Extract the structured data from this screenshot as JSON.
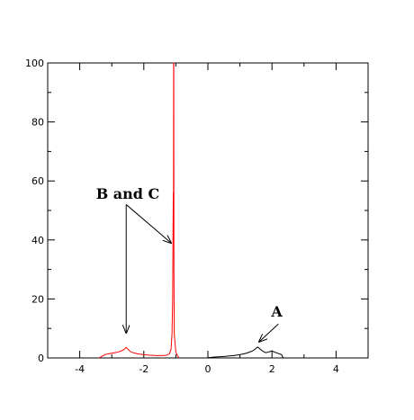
{
  "chart_data": {
    "type": "line",
    "title": "",
    "xlabel": "",
    "ylabel": "",
    "xlim": [
      -5,
      5
    ],
    "ylim": [
      0,
      100
    ],
    "x_ticks": [
      -4,
      -2,
      0,
      2,
      4
    ],
    "y_ticks": [
      0,
      20,
      40,
      60,
      80,
      100
    ],
    "x_tick_labels": [
      "-4",
      "-2",
      "0",
      "2",
      "4"
    ],
    "y_tick_labels": [
      "0",
      "20",
      "40",
      "60",
      "80",
      "100"
    ],
    "grid": false,
    "series": [
      {
        "color": "#ff0000",
        "points": [
          [
            -3.4,
            0
          ],
          [
            -3.3,
            0.6
          ],
          [
            -3.2,
            1.2
          ],
          [
            -3.1,
            1.4
          ],
          [
            -3.0,
            1.6
          ],
          [
            -2.9,
            1.8
          ],
          [
            -2.8,
            2.0
          ],
          [
            -2.7,
            2.4
          ],
          [
            -2.6,
            3.0
          ],
          [
            -2.55,
            3.6
          ],
          [
            -2.5,
            3.0
          ],
          [
            -2.4,
            2.0
          ],
          [
            -2.2,
            1.4
          ],
          [
            -2.0,
            1.1
          ],
          [
            -1.8,
            0.9
          ],
          [
            -1.6,
            0.8
          ],
          [
            -1.4,
            0.8
          ],
          [
            -1.3,
            0.9
          ],
          [
            -1.2,
            1.4
          ],
          [
            -1.15,
            3.0
          ],
          [
            -1.12,
            8.0
          ],
          [
            -1.1,
            20.0
          ],
          [
            -1.09,
            40.0
          ],
          [
            -1.08,
            56.0
          ],
          [
            -1.075,
            40.0
          ],
          [
            -1.07,
            100
          ],
          [
            -1.065,
            100
          ],
          [
            -1.06,
            30.0
          ],
          [
            -1.05,
            8.0
          ],
          [
            -1.0,
            2.0
          ],
          [
            -0.95,
            0.8
          ],
          [
            -0.9,
            0
          ]
        ]
      },
      {
        "color": "#000000",
        "points": [
          [
            -0.05,
            0
          ],
          [
            0.2,
            0.3
          ],
          [
            0.5,
            0.5
          ],
          [
            0.8,
            0.8
          ],
          [
            1.0,
            1.1
          ],
          [
            1.2,
            1.6
          ],
          [
            1.4,
            2.4
          ],
          [
            1.5,
            3.2
          ],
          [
            1.55,
            3.7
          ],
          [
            1.6,
            3.3
          ],
          [
            1.7,
            2.4
          ],
          [
            1.8,
            1.8
          ],
          [
            1.9,
            2.0
          ],
          [
            2.0,
            2.4
          ],
          [
            2.1,
            1.9
          ],
          [
            2.2,
            1.5
          ],
          [
            2.3,
            1.1
          ],
          [
            2.35,
            0
          ]
        ]
      }
    ],
    "annotations": [
      {
        "text": "B and C",
        "text_at": [
          -2.5,
          54
        ],
        "arrows": [
          {
            "from": [
              -2.55,
              52
            ],
            "to": [
              -2.55,
              8.5
            ]
          },
          {
            "from": [
              -2.55,
              52
            ],
            "to": [
              -1.15,
              39
            ]
          }
        ]
      },
      {
        "text": "A",
        "text_at": [
          2.15,
          14
        ],
        "arrows": [
          {
            "from": [
              2.2,
              11.5
            ],
            "to": [
              1.6,
              5.5
            ]
          }
        ]
      }
    ]
  }
}
